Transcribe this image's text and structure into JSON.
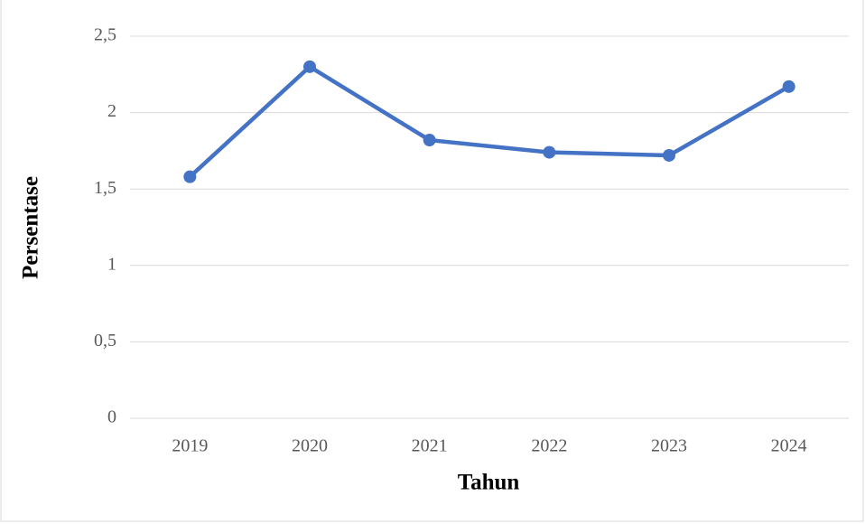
{
  "chart_data": {
    "type": "line",
    "categories": [
      "2019",
      "2020",
      "2021",
      "2022",
      "2023",
      "2024"
    ],
    "values": [
      1.58,
      2.3,
      1.82,
      1.74,
      1.72,
      2.17
    ],
    "color": "#4472c4",
    "x_label": "Tahun",
    "y_label": "Persentase",
    "ylim": [
      0,
      2.5
    ],
    "yticks": [
      0,
      {
        "value": 0.5,
        "label": "0,5"
      },
      1,
      {
        "value": 1.5,
        "label": "1,5"
      },
      2,
      {
        "value": 2.5,
        "label": "2,5"
      }
    ],
    "grid": true
  }
}
